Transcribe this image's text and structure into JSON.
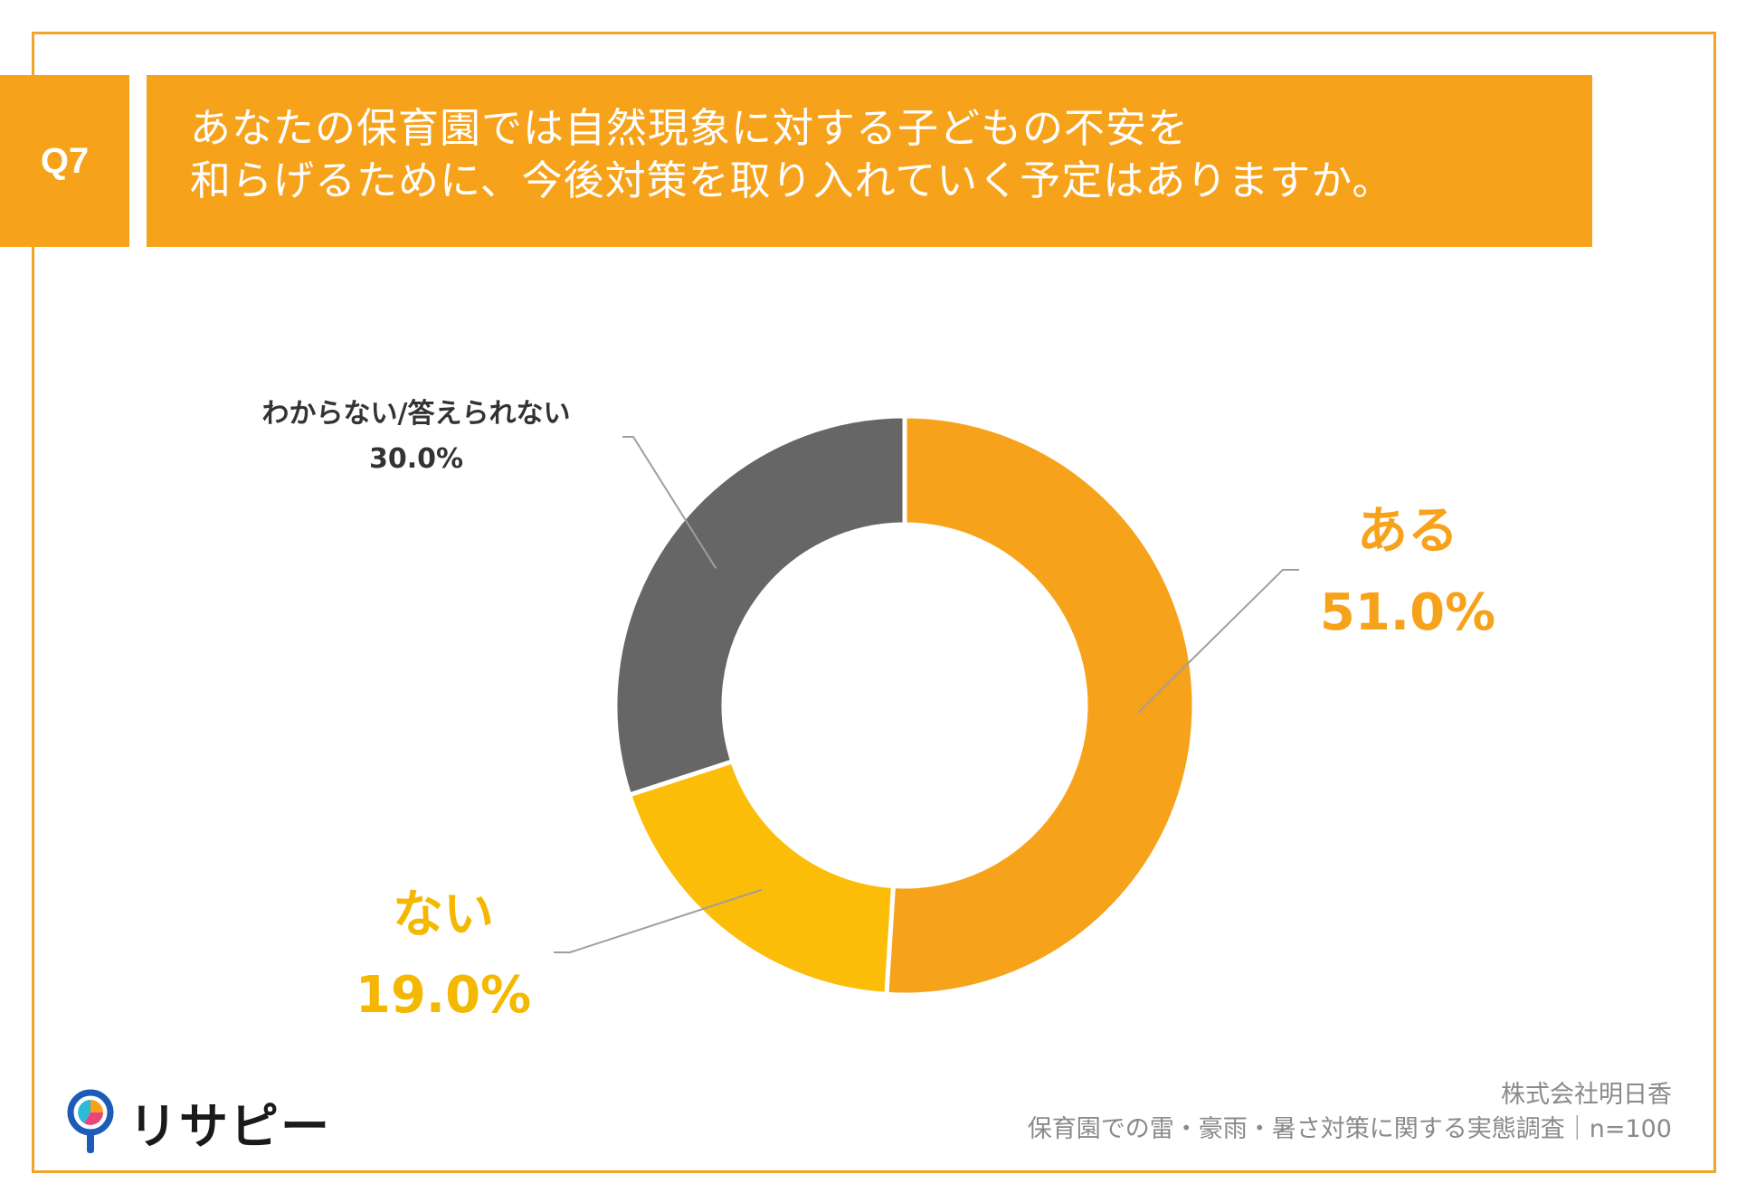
{
  "header": {
    "question_id": "Q7",
    "title_line1": "あなたの保育園では自然現象に対する子どもの不安を",
    "title_line2": "和らげるために、今後対策を取り入れていく予定はありますか。"
  },
  "chart_data": {
    "type": "pie",
    "variant": "donut",
    "title": "あなたの保育園では自然現象に対する子どもの不安を和らげるために、今後対策を取り入れていく予定はありますか。",
    "categories": [
      "ある",
      "ない",
      "わからない/答えられない"
    ],
    "values": [
      51.0,
      19.0,
      30.0
    ],
    "value_labels": [
      "51.0%",
      "19.0%",
      "30.0%"
    ],
    "colors": [
      "#F7A21B",
      "#FBBD08",
      "#666666"
    ],
    "unit": "%"
  },
  "colors": {
    "accent": "#F7A21B",
    "frame": "#F0A42A",
    "leader": "#9E9E9E"
  },
  "footer": {
    "logo_text": "リサピー",
    "company": "株式会社明日香",
    "survey": "保育園での雷・豪雨・暑さ対策に関する実態調査｜n=100"
  }
}
